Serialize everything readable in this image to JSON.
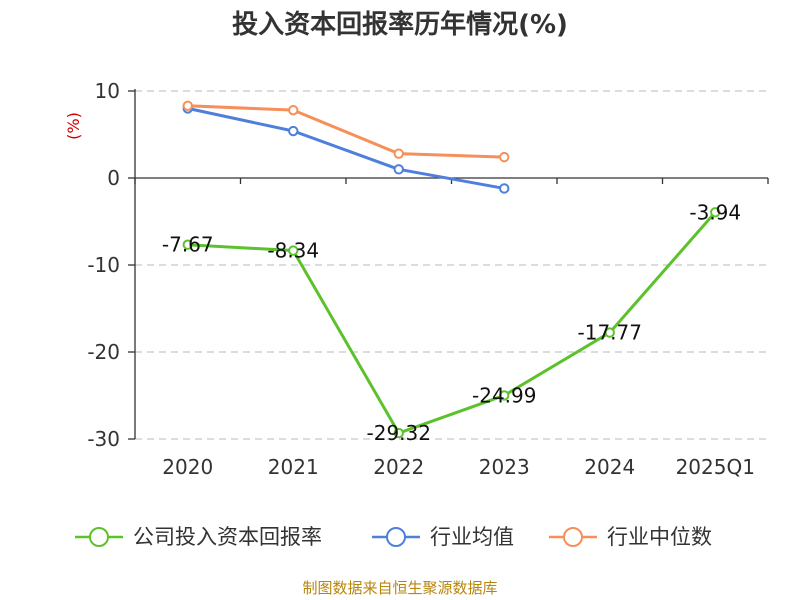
{
  "title": "投入资本回报率历年情况(%)",
  "source": "制图数据来自恒生聚源数据库",
  "chart_data": {
    "type": "line",
    "title": "投入资本回报率历年情况(%)",
    "ylabel": "(%)",
    "xlabel": "",
    "categories": [
      "2020",
      "2021",
      "2022",
      "2023",
      "2024",
      "2025Q1"
    ],
    "ylim": [
      -30,
      10
    ],
    "yticks": [
      10,
      0,
      -10,
      -20,
      -30
    ],
    "grid": true,
    "legend_position": "bottom",
    "series": [
      {
        "name": "公司投入资本回报率",
        "color": "#5cc22c",
        "values": [
          -7.67,
          -8.34,
          -29.32,
          -24.99,
          -17.77,
          -3.94
        ],
        "labels": [
          "-7.67",
          "-8.34",
          "-29.32",
          "-24.99",
          "-17.77",
          "-3.94"
        ]
      },
      {
        "name": "行业均值",
        "color": "#4f7fdc",
        "values": [
          8.0,
          5.4,
          1.0,
          -1.2,
          null,
          null
        ]
      },
      {
        "name": "行业中位数",
        "color": "#f5905a",
        "values": [
          8.3,
          7.8,
          2.8,
          2.4,
          null,
          null
        ]
      }
    ]
  }
}
